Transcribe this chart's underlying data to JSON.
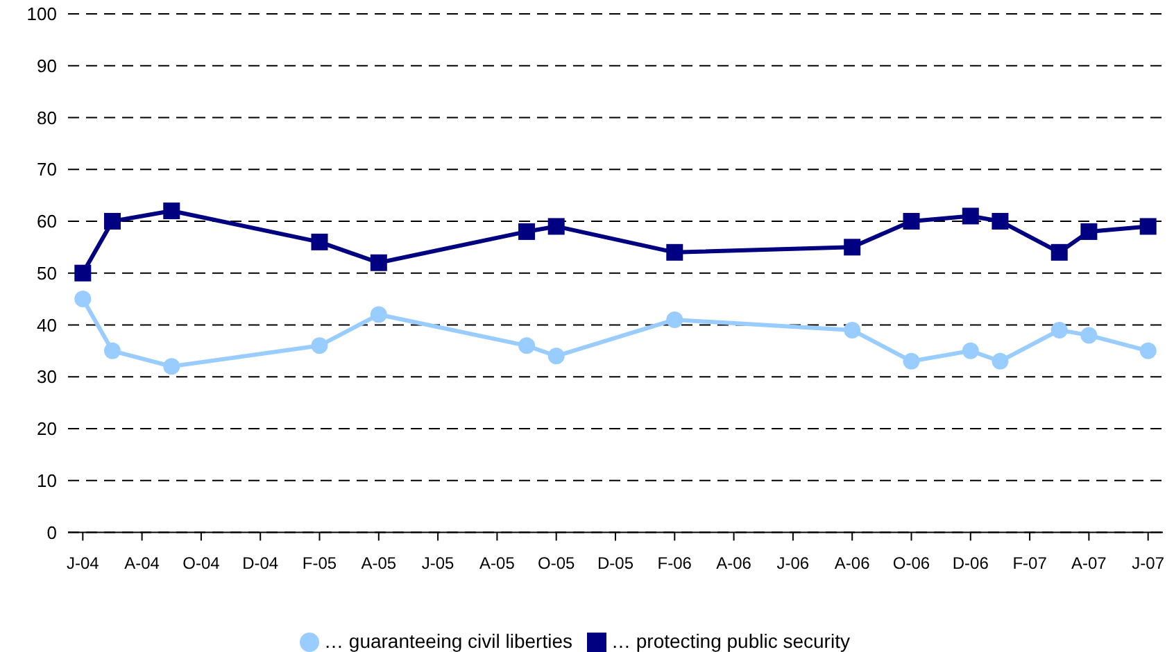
{
  "chart_data": {
    "type": "line",
    "x": [
      "2004-06",
      "2004-07",
      "2004-09",
      "2005-02",
      "2005-04",
      "2005-09",
      "2005-10",
      "2006-02",
      "2006-08",
      "2006-10",
      "2006-12",
      "2007-01",
      "2007-03",
      "2007-04",
      "2007-06"
    ],
    "series": [
      {
        "name": "… guaranteeing civil liberties",
        "color": "#99ccff",
        "marker": "circle",
        "values": [
          45,
          35,
          32,
          36,
          42,
          36,
          34,
          41,
          39,
          33,
          35,
          33,
          39,
          38,
          35
        ]
      },
      {
        "name": "… protecting public security",
        "color": "#000080",
        "marker": "square",
        "values": [
          50,
          60,
          62,
          56,
          52,
          58,
          59,
          54,
          55,
          60,
          61,
          60,
          54,
          58,
          59
        ]
      }
    ],
    "xlim": [
      "2004-05-16",
      "2007-06-16"
    ],
    "xticks": [
      {
        "value": "2004-06",
        "label": "J-04"
      },
      {
        "value": "2004-08",
        "label": "A-04"
      },
      {
        "value": "2004-10",
        "label": "O-04"
      },
      {
        "value": "2004-12",
        "label": "D-04"
      },
      {
        "value": "2005-02",
        "label": "F-05"
      },
      {
        "value": "2005-04",
        "label": "A-05"
      },
      {
        "value": "2005-06",
        "label": "J-05"
      },
      {
        "value": "2005-08",
        "label": "A-05"
      },
      {
        "value": "2005-10",
        "label": "O-05"
      },
      {
        "value": "2005-12",
        "label": "D-05"
      },
      {
        "value": "2006-02",
        "label": "F-06"
      },
      {
        "value": "2006-04",
        "label": "A-06"
      },
      {
        "value": "2006-06",
        "label": "J-06"
      },
      {
        "value": "2006-08",
        "label": "A-06"
      },
      {
        "value": "2006-10",
        "label": "O-06"
      },
      {
        "value": "2006-12",
        "label": "D-06"
      },
      {
        "value": "2007-02",
        "label": "F-07"
      },
      {
        "value": "2007-04",
        "label": "A-07"
      },
      {
        "value": "2007-06",
        "label": "J-07"
      }
    ],
    "ylim": [
      0,
      100
    ],
    "yticks": [
      0,
      10,
      20,
      30,
      40,
      50,
      60,
      70,
      80,
      90,
      100
    ],
    "grid": "y",
    "legend": "bottom",
    "line_style": "solid"
  }
}
